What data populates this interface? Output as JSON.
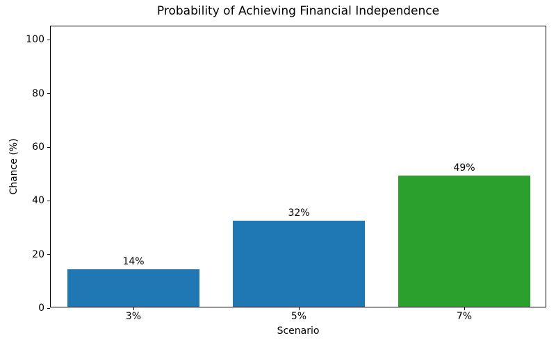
{
  "chart_data": {
    "type": "bar",
    "title": "Probability of Achieving Financial Independence",
    "xlabel": "Scenario",
    "ylabel": "Chance (%)",
    "categories": [
      "3%",
      "5%",
      "7%"
    ],
    "values": [
      14,
      32,
      49
    ],
    "value_labels": [
      "14%",
      "32%",
      "49%"
    ],
    "bar_colors": [
      "#1f77b4",
      "#1f77b4",
      "#2ca02c"
    ],
    "yticks": [
      0,
      20,
      40,
      60,
      80,
      100
    ],
    "ylim": [
      0,
      105
    ],
    "bar_width_fraction": 0.8,
    "grid": false,
    "frame": "box",
    "legend": "none",
    "background_color": "#ffffff",
    "text_color": "#000000"
  }
}
